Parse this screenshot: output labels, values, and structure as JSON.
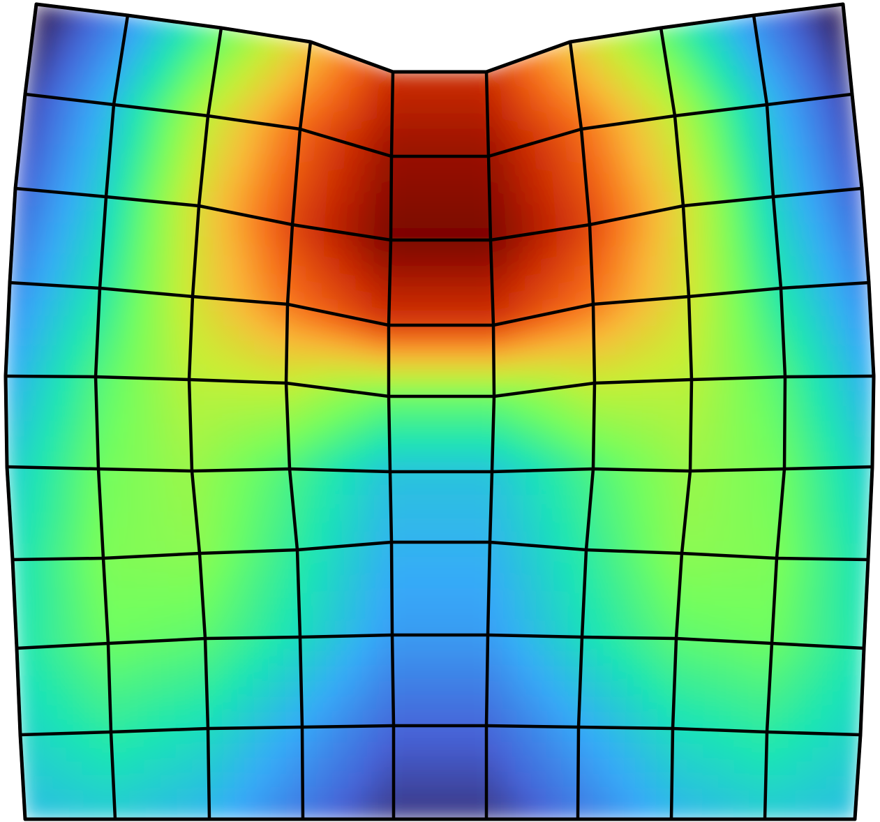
{
  "figure": {
    "description_type": "deformed-mesh-contour",
    "mesh": {
      "rows": 9,
      "cols": 9
    },
    "colormap": [
      "#30123b",
      "#4662d7",
      "#36aaf9",
      "#1ae4b6",
      "#72fe5e",
      "#c8ef34",
      "#faba39",
      "#f66b19",
      "#ca2a04",
      "#7a0403"
    ],
    "colors": {
      "background": "#ffffff",
      "mesh_lines": "#000000"
    }
  }
}
